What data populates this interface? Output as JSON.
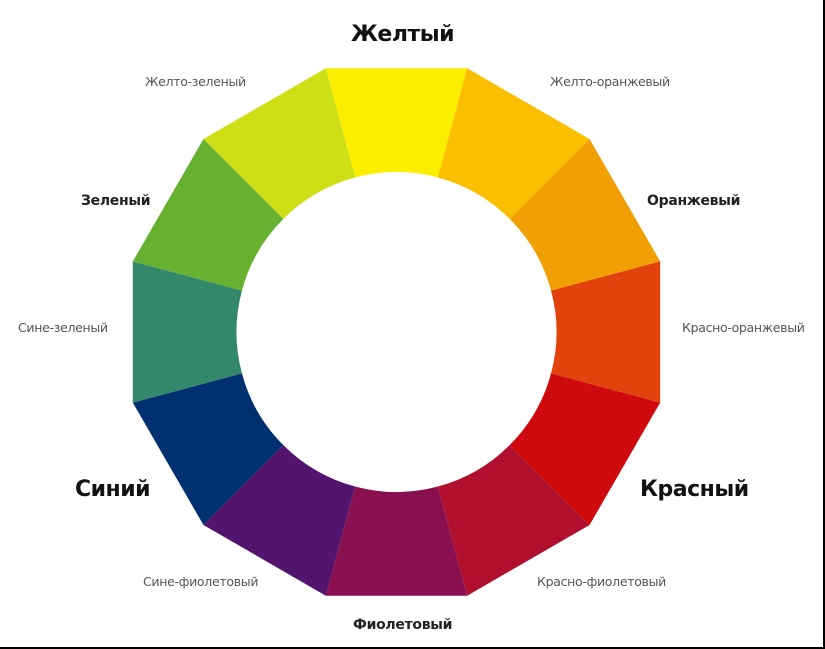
{
  "segments": [
    {
      "name": "Желтый",
      "color": "#FCEE00",
      "level": "primary"
    },
    {
      "name": "Желто-оранжевый",
      "color": "#F9BF00",
      "level": "tertiary"
    },
    {
      "name": "Оранжевый",
      "color": "#F0A004",
      "level": "secondary"
    },
    {
      "name": "Красно-оранжевый",
      "color": "#E2420B",
      "level": "tertiary"
    },
    {
      "name": "Красный",
      "color": "#CF0A0E",
      "level": "primary"
    },
    {
      "name": "Красно-фиолетовый",
      "color": "#B0102E",
      "level": "tertiary"
    },
    {
      "name": "Фиолетовый",
      "color": "#890F4E",
      "level": "secondary"
    },
    {
      "name": "Сине-фиолетовый",
      "color": "#52146C",
      "level": "tertiary"
    },
    {
      "name": "Синий",
      "color": "#00306F",
      "level": "primary"
    },
    {
      "name": "Сине-зеленый",
      "color": "#33876A",
      "level": "tertiary"
    },
    {
      "name": "Зеленый",
      "color": "#67B130",
      "level": "secondary"
    },
    {
      "name": "Желто-зеленый",
      "color": "#CFDF15",
      "level": "tertiary"
    }
  ]
}
